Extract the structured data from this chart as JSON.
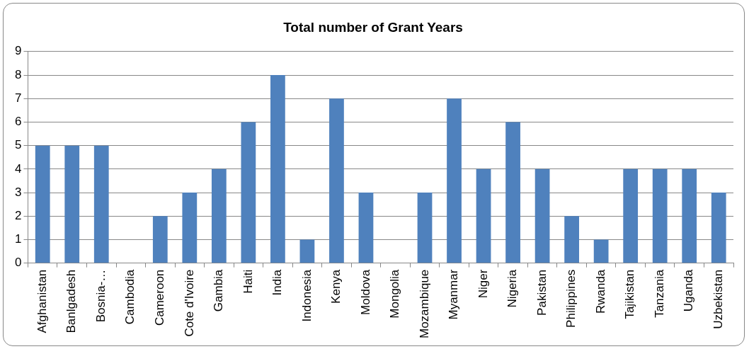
{
  "chart_data": {
    "type": "bar",
    "title": "Total number of Grant Years",
    "categories": [
      "Afghanistan",
      "Banlgadesh",
      "Bosnia-…",
      "Cambodia",
      "Cameroon",
      "Cote d'Ivoire",
      "Gambia",
      "Haiti",
      "India",
      "Indonesia",
      "Kenya",
      "Moldova",
      "Mongolia",
      "Mozambique",
      "Myanmar",
      "Niger",
      "Nigeria",
      "Pakistan",
      "Philippines",
      "Rwanda",
      "Tajikistan",
      "Tanzania",
      "Uganda",
      "Uzbekistan"
    ],
    "values": [
      5,
      5,
      5,
      0,
      2,
      3,
      4,
      6,
      8,
      1,
      7,
      3,
      0,
      3,
      7,
      4,
      6,
      4,
      2,
      1,
      4,
      4,
      4,
      3
    ],
    "color": "#4f81bd",
    "ylim": [
      0,
      9
    ],
    "yticks": [
      0,
      1,
      2,
      3,
      4,
      5,
      6,
      7,
      8,
      9
    ],
    "grid": "y",
    "legend": false
  }
}
